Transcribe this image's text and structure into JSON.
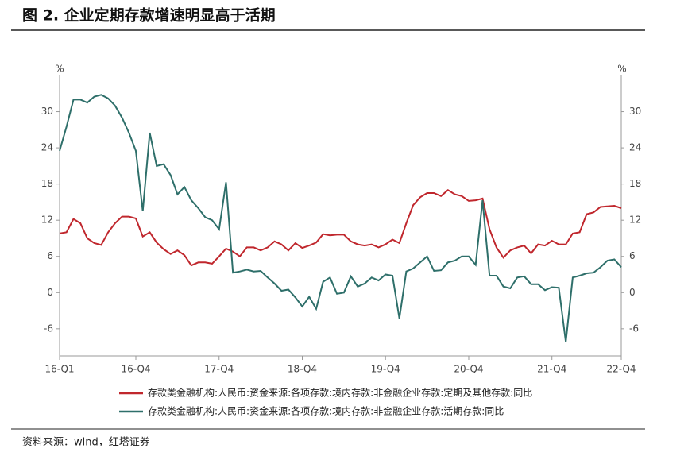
{
  "chart_data": {
    "type": "line",
    "title": "图 2. 企业定期存款增速明显高于活期",
    "source": "资料来源：wind，红塔证券",
    "y_unit": "%",
    "y2_unit": "%",
    "categories": [
      "16-Q1",
      null,
      null,
      null,
      null,
      null,
      null,
      null,
      null,
      null,
      null,
      "16-Q4",
      null,
      null,
      null,
      null,
      null,
      null,
      null,
      null,
      null,
      null,
      null,
      "17-Q4",
      null,
      null,
      null,
      null,
      null,
      null,
      null,
      null,
      null,
      null,
      null,
      "18-Q4",
      null,
      null,
      null,
      null,
      null,
      null,
      null,
      null,
      null,
      null,
      null,
      "19-Q4",
      null,
      null,
      null,
      null,
      null,
      null,
      null,
      null,
      null,
      null,
      null,
      "20-Q4",
      null,
      null,
      null,
      null,
      null,
      null,
      null,
      null,
      null,
      null,
      null,
      "21-Q4",
      null,
      null,
      null,
      null,
      null,
      null,
      null,
      null,
      null,
      "22-Q4"
    ],
    "ylim": [
      -10.5,
      36
    ],
    "yticks": [
      -6,
      0,
      6,
      12,
      18,
      24,
      30
    ],
    "y2lim": [
      -10.5,
      36
    ],
    "y2ticks": [
      -6,
      0,
      6,
      12,
      18,
      24,
      30
    ],
    "series": [
      {
        "name": "存款类金融机构:人民币:资金来源:各项存款:境内存款:非金融企业存款:定期及其他存款:同比",
        "color": "#c0272d",
        "values": [
          9.8,
          10.0,
          12.2,
          11.5,
          9.0,
          8.2,
          7.9,
          10.0,
          11.5,
          12.6,
          12.6,
          12.3,
          9.3,
          10.0,
          8.3,
          7.2,
          6.4,
          7.0,
          6.2,
          4.5,
          5.0,
          5.0,
          4.8,
          6.0,
          7.3,
          6.8,
          6.0,
          7.5,
          7.5,
          7.0,
          7.5,
          8.5,
          8.0,
          7.0,
          8.2,
          7.4,
          7.8,
          8.3,
          9.7,
          9.5,
          9.6,
          9.6,
          8.5,
          8.0,
          7.8,
          8.0,
          7.5,
          8.0,
          8.8,
          8.2,
          11.5,
          14.5,
          15.8,
          16.5,
          16.5,
          16.0,
          17.0,
          16.3,
          16.0,
          15.2,
          15.3,
          15.6,
          10.5,
          7.5,
          5.8,
          7.0,
          7.5,
          7.8,
          6.5,
          8.0,
          7.8,
          8.6,
          8.0,
          8.0,
          9.8,
          10.0,
          13.0,
          13.3,
          14.2,
          14.3,
          14.4,
          14.0
        ]
      },
      {
        "name": "存款类金融机构:人民币:资金来源:各项存款:境内存款:非金融企业存款:活期存款:同比",
        "color": "#2e6f6a",
        "axis": "y2",
        "values": [
          23.5,
          27.5,
          32.0,
          32.0,
          31.5,
          32.5,
          32.8,
          32.2,
          31.0,
          29.0,
          26.5,
          23.5,
          13.5,
          26.5,
          21.0,
          21.3,
          19.5,
          16.3,
          17.5,
          15.3,
          14.0,
          12.5,
          12.0,
          10.5,
          18.3,
          3.3,
          3.5,
          3.8,
          3.5,
          3.6,
          2.5,
          1.5,
          0.3,
          0.5,
          -0.8,
          -2.3,
          -0.7,
          -2.7,
          1.8,
          2.5,
          -0.2,
          0.0,
          2.7,
          1.0,
          1.5,
          2.5,
          2.0,
          3.0,
          2.8,
          -4.3,
          3.5,
          4.0,
          5.0,
          6.0,
          3.6,
          3.7,
          5.0,
          5.3,
          6.0,
          6.0,
          4.6,
          15.3,
          2.8,
          2.8,
          1.0,
          0.7,
          2.5,
          2.7,
          1.4,
          1.4,
          0.4,
          0.9,
          0.8,
          -8.2,
          2.5,
          2.8,
          3.2,
          3.3,
          4.2,
          5.3,
          5.5,
          4.2
        ]
      }
    ]
  }
}
